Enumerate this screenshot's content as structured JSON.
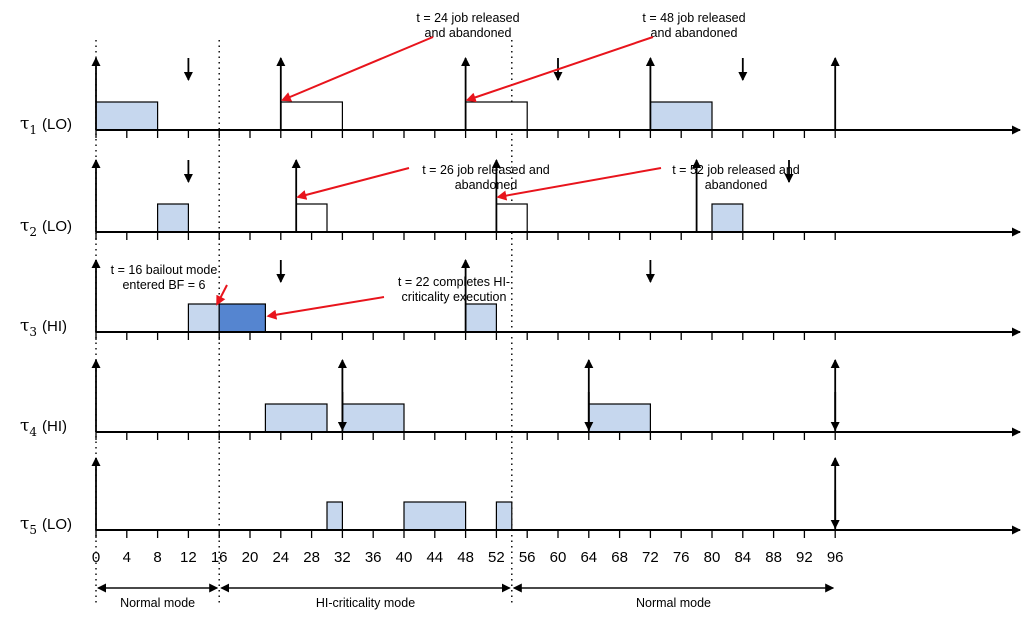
{
  "colors": {
    "job_fill": "#c6d7ee",
    "job_dark": "#5585d0",
    "stroke": "#000000",
    "annotation_arrow": "#e8141c",
    "background": "#ffffff"
  },
  "time_axis": {
    "min": 0,
    "max": 96,
    "tick_labels": [
      "0",
      "4",
      "8",
      "12",
      "16",
      "20",
      "24",
      "28",
      "32",
      "36",
      "40",
      "44",
      "48",
      "52",
      "56",
      "60",
      "64",
      "68",
      "72",
      "76",
      "80",
      "84",
      "88",
      "92",
      "96"
    ]
  },
  "mode_switches": [
    0,
    16,
    54
  ],
  "tasks": [
    {
      "symbol": "τ",
      "sub": "1",
      "crit": "(LO)",
      "releases": [
        0,
        24,
        48,
        72,
        96
      ],
      "deadlines": [
        12,
        60,
        84
      ],
      "jobs": [
        {
          "start": 0,
          "end": 8,
          "style": "exec"
        },
        {
          "start": 24,
          "end": 32,
          "style": "abandoned"
        },
        {
          "start": 48,
          "end": 56,
          "style": "abandoned"
        },
        {
          "start": 72,
          "end": 80,
          "style": "exec"
        }
      ]
    },
    {
      "symbol": "τ",
      "sub": "2",
      "crit": "(LO)",
      "releases": [
        0,
        26,
        52,
        78
      ],
      "deadlines": [
        12,
        90
      ],
      "jobs": [
        {
          "start": 8,
          "end": 12,
          "style": "exec"
        },
        {
          "start": 26,
          "end": 30,
          "style": "abandoned"
        },
        {
          "start": 52,
          "end": 56,
          "style": "abandoned"
        },
        {
          "start": 80,
          "end": 84,
          "style": "exec"
        }
      ]
    },
    {
      "symbol": "τ",
      "sub": "3",
      "crit": "(HI)",
      "releases": [
        0,
        48
      ],
      "deadlines": [
        24,
        72
      ],
      "jobs": [
        {
          "start": 12,
          "end": 16,
          "style": "exec"
        },
        {
          "start": 16,
          "end": 22,
          "style": "hi"
        },
        {
          "start": 48,
          "end": 52,
          "style": "exec"
        }
      ]
    },
    {
      "symbol": "τ",
      "sub": "4",
      "crit": "(HI)",
      "releases": [
        0,
        32,
        64,
        96
      ],
      "deadlines": [
        32,
        64,
        96
      ],
      "jobs": [
        {
          "start": 22,
          "end": 30,
          "style": "exec"
        },
        {
          "start": 32,
          "end": 40,
          "style": "exec"
        },
        {
          "start": 64,
          "end": 72,
          "style": "exec"
        }
      ]
    },
    {
      "symbol": "τ",
      "sub": "5",
      "crit": "(LO)",
      "releases": [
        0,
        96
      ],
      "deadlines": [
        96
      ],
      "jobs": [
        {
          "start": 30,
          "end": 32,
          "style": "exec"
        },
        {
          "start": 40,
          "end": 48,
          "style": "exec"
        },
        {
          "start": 52,
          "end": 54,
          "style": "exec"
        }
      ]
    }
  ],
  "annotations": [
    {
      "lines": [
        "t = 24 job released",
        "and abandoned"
      ],
      "row": 0,
      "t": 24
    },
    {
      "lines": [
        "t = 48 job released",
        "and abandoned"
      ],
      "row": 0,
      "t": 48
    },
    {
      "lines": [
        "t = 26 job released and",
        "abandoned"
      ],
      "row": 1,
      "t": 26
    },
    {
      "lines": [
        "t = 52 job released and",
        "abandoned"
      ],
      "row": 1,
      "t": 52
    },
    {
      "lines": [
        "t = 16 bailout mode",
        "entered BF = 6"
      ],
      "row": 2,
      "t": 16
    },
    {
      "lines": [
        "t = 22 completes HI-",
        "criticality execution"
      ],
      "row": 2,
      "t": 22
    }
  ],
  "modes": [
    {
      "label": "Normal mode",
      "from": 0,
      "to": 16
    },
    {
      "label": "HI-criticality mode",
      "from": 16,
      "to": 54
    },
    {
      "label": "Normal mode",
      "from": 54,
      "to": 96
    }
  ]
}
